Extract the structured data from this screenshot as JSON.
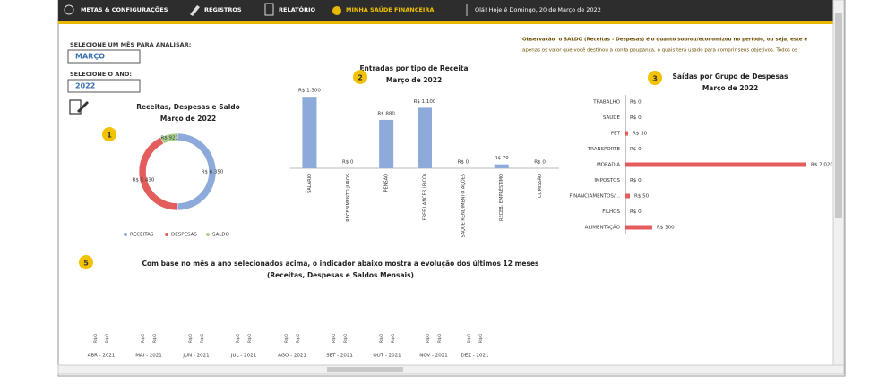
{
  "menu": {
    "items": [
      "METAS & CONFIGURAÇÕES",
      "REGISTROS",
      "RELATÓRIO",
      "MINHA SAÚDE FINANCEIRA"
    ]
  },
  "greeting": "Olá! Hoje é Domingo,  20 de Março de 2022",
  "filters": {
    "month_label": "SELECIONE UM MÊS PARA ANALISAR:",
    "month": "MARÇO",
    "year_label": "SELECIONE O ANO:",
    "year": "2022"
  },
  "note": [
    "Observação: o SALDO (Receitas - Despesas) é o quanto sobrou/economizou no período, ou seja, este é",
    "apenas os valor que você destinou a conta poupança, o quais terá usado para comprir seus objetivos. Todos os"
  ],
  "section5": {
    "badge": "5",
    "text": "Com base no mês a ano selecionados acima, o indicador abaixo mostra a evolução dos últimos 12 meses",
    "subtext": "(Receitas, Despesas e Saldos Mensais)"
  },
  "chart_data": [
    {
      "type": "pie",
      "donut": true,
      "badge": "1",
      "title": "Receitas, Despesas e Saldo",
      "subtitle": "Março de 2022",
      "categories": [
        "RECEITAS",
        "DESPESAS",
        "SALDO"
      ],
      "values": [
        6350,
        5430,
        921
      ],
      "value_labels": [
        "R$ 6.350",
        "R$ 5.430",
        "R$ 921"
      ],
      "colors": [
        "#8eaadb",
        "#e35d5d",
        "#a9d18e"
      ],
      "legend": "bottom"
    },
    {
      "type": "bar",
      "orientation": "vertical",
      "badge": "2",
      "title": "Entradas por tipo de Receita",
      "subtitle": "Março de 2022",
      "categories": [
        "SALÁRIO",
        "RECEBIMENTO JUROS",
        "PENSÃO",
        "FREE LANCER (BICO)",
        "SAQUE RENDIMENTO AÇÕES",
        "RECEB. EMPRÉSTIMO",
        "COMISSÃO"
      ],
      "values": [
        1300,
        0,
        880,
        1100,
        0,
        70,
        0
      ],
      "value_labels": [
        "R$ 1.300",
        "R$ 0",
        "R$ 880",
        "R$ 1.100",
        "R$ 0",
        "R$ 70",
        "R$ 0"
      ],
      "color": "#8eaadb",
      "ylim": [
        0,
        1400
      ]
    },
    {
      "type": "bar",
      "orientation": "horizontal",
      "badge": "3",
      "title": "Saídas por Grupo de Despesas",
      "subtitle": "Março de 2022",
      "categories": [
        "TRABALHO",
        "SAÚDE",
        "PET",
        "TRANSPORTE",
        "MORADIA",
        "IMPOSTOS",
        "FINANCIAMENTOS/...",
        "FILHOS",
        "ALIMENTAÇÃO"
      ],
      "values": [
        0,
        0,
        30,
        0,
        2020,
        0,
        50,
        0,
        300
      ],
      "value_labels": [
        "R$ 0",
        "R$ 0",
        "R$ 30",
        "R$ 0",
        "R$ 2.020",
        "R$ 0",
        "R$ 50",
        "R$ 0",
        "R$ 300"
      ],
      "color": "#e35d5d",
      "xlim": [
        0,
        2100
      ]
    },
    {
      "type": "bar",
      "orientation": "grouped",
      "categories": [
        "ABR - 2021",
        "MAI - 2021",
        "JUN - 2021",
        "JUL - 2021",
        "AGO - 2021",
        "SET - 2021",
        "OUT - 2021",
        "NOV - 2021",
        "DEZ - 2021"
      ],
      "series": [
        {
          "values": [
            0,
            0,
            0,
            0,
            0,
            0,
            0,
            0,
            0
          ],
          "value_labels": [
            "R$ 0",
            "R$ 0",
            "R$ 0",
            "R$ 0",
            "R$ 0",
            "R$ 0",
            "R$ 0",
            "R$ 0",
            "R$ 0"
          ]
        },
        {
          "values": [
            0,
            0,
            0,
            0,
            0,
            0,
            0,
            0,
            0
          ],
          "value_labels": [
            "R$ 0",
            "R$ 0",
            "R$ 0",
            "R$ 0",
            "R$ 0",
            "R$ 0",
            "R$ 0",
            "R$ 0",
            "R$ 0"
          ]
        }
      ],
      "ylim": [
        0,
        1
      ]
    }
  ]
}
